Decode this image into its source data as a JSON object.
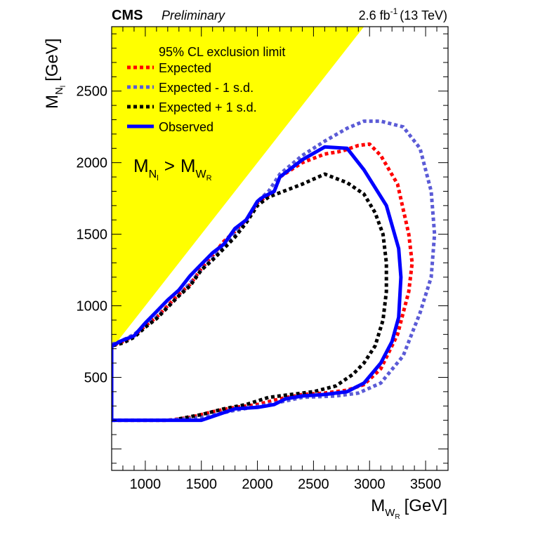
{
  "header": {
    "experiment": "CMS",
    "status": "Preliminary",
    "lumi_value": "2.6 fb",
    "lumi_exp": "-1",
    "energy": "(13 TeV)"
  },
  "chart_data": {
    "type": "line",
    "title": "95% CL exclusion limit",
    "xlabel": "M",
    "xlabel_sub": "W",
    "xlabel_subsub": "R",
    "xlabel_unit": "[GeV]",
    "ylabel": "M",
    "ylabel_sub": "N",
    "ylabel_subsub": "l",
    "ylabel_unit": "[GeV]",
    "xlim": [
      700,
      3700
    ],
    "ylim": [
      -150,
      2950
    ],
    "xticks": [
      1000,
      1500,
      2000,
      2500,
      3000,
      3500
    ],
    "yticks": [
      500,
      1000,
      1500,
      2000,
      2500
    ],
    "excluded_region": {
      "label_main": "M",
      "label_sub": "N",
      "label_subsub": "l",
      "label_op": ">",
      "label_rhs": "M",
      "label_rhs_sub": "W",
      "label_rhs_subsub": "R",
      "color": "#ffff00",
      "description": "kinematically forbidden region where MN > MW"
    },
    "legend_position": "top-left",
    "series": [
      {
        "name": "Expected",
        "color": "#ff0000",
        "style": "dotted",
        "points": [
          [
            700,
            200
          ],
          [
            1000,
            200
          ],
          [
            1200,
            200
          ],
          [
            1400,
            220
          ],
          [
            1600,
            260
          ],
          [
            1800,
            290
          ],
          [
            2000,
            310
          ],
          [
            2200,
            350
          ],
          [
            2400,
            380
          ],
          [
            2600,
            390
          ],
          [
            2800,
            410
          ],
          [
            2950,
            450
          ],
          [
            3100,
            560
          ],
          [
            3250,
            800
          ],
          [
            3350,
            1100
          ],
          [
            3380,
            1300
          ],
          [
            3350,
            1500
          ],
          [
            3250,
            1850
          ],
          [
            3100,
            2050
          ],
          [
            3000,
            2130
          ],
          [
            2900,
            2120
          ],
          [
            2750,
            2080
          ],
          [
            2600,
            2060
          ],
          [
            2400,
            2000
          ],
          [
            2200,
            1900
          ],
          [
            2150,
            1800
          ],
          [
            2000,
            1720
          ],
          [
            1900,
            1600
          ],
          [
            1800,
            1520
          ],
          [
            1700,
            1450
          ],
          [
            1600,
            1350
          ],
          [
            1500,
            1260
          ],
          [
            1400,
            1150
          ],
          [
            1300,
            1080
          ],
          [
            1200,
            1000
          ],
          [
            1100,
            920
          ],
          [
            1000,
            860
          ],
          [
            900,
            790
          ],
          [
            800,
            750
          ],
          [
            700,
            720
          ],
          [
            700,
            200
          ]
        ]
      },
      {
        "name": "Expected - 1 s.d.",
        "color": "#5b5bd6",
        "style": "dotted",
        "points": [
          [
            700,
            200
          ],
          [
            1200,
            200
          ],
          [
            1500,
            220
          ],
          [
            1800,
            270
          ],
          [
            2100,
            310
          ],
          [
            2400,
            360
          ],
          [
            2700,
            370
          ],
          [
            2900,
            390
          ],
          [
            3100,
            460
          ],
          [
            3300,
            650
          ],
          [
            3450,
            950
          ],
          [
            3550,
            1200
          ],
          [
            3580,
            1500
          ],
          [
            3550,
            1800
          ],
          [
            3450,
            2100
          ],
          [
            3300,
            2250
          ],
          [
            3100,
            2290
          ],
          [
            2950,
            2290
          ],
          [
            2800,
            2240
          ],
          [
            2600,
            2150
          ],
          [
            2400,
            2050
          ],
          [
            2200,
            1920
          ],
          [
            2100,
            1800
          ],
          [
            2000,
            1730
          ],
          [
            1900,
            1600
          ],
          [
            1800,
            1500
          ],
          [
            1700,
            1420
          ],
          [
            1600,
            1330
          ],
          [
            1500,
            1250
          ],
          [
            1400,
            1160
          ],
          [
            1300,
            1070
          ],
          [
            1200,
            990
          ],
          [
            1100,
            920
          ],
          [
            1000,
            860
          ],
          [
            900,
            800
          ],
          [
            800,
            760
          ],
          [
            700,
            730
          ]
        ]
      },
      {
        "name": "Expected + 1 s.d.",
        "color": "#000000",
        "style": "dotted",
        "points": [
          [
            1300,
            210
          ],
          [
            1500,
            240
          ],
          [
            1700,
            280
          ],
          [
            1900,
            310
          ],
          [
            2100,
            360
          ],
          [
            2300,
            380
          ],
          [
            2500,
            400
          ],
          [
            2700,
            440
          ],
          [
            2850,
            520
          ],
          [
            2950,
            600
          ],
          [
            3050,
            720
          ],
          [
            3120,
            900
          ],
          [
            3150,
            1100
          ],
          [
            3150,
            1300
          ],
          [
            3120,
            1500
          ],
          [
            3050,
            1650
          ],
          [
            2950,
            1780
          ],
          [
            2800,
            1860
          ],
          [
            2600,
            1920
          ],
          [
            2400,
            1850
          ],
          [
            2200,
            1790
          ],
          [
            2100,
            1760
          ],
          [
            2000,
            1700
          ],
          [
            1900,
            1580
          ],
          [
            1800,
            1480
          ],
          [
            1700,
            1400
          ],
          [
            1600,
            1320
          ],
          [
            1500,
            1250
          ],
          [
            1400,
            1140
          ],
          [
            1300,
            1070
          ],
          [
            1200,
            990
          ],
          [
            1100,
            910
          ],
          [
            1000,
            850
          ],
          [
            900,
            780
          ],
          [
            800,
            740
          ],
          [
            700,
            720
          ]
        ]
      },
      {
        "name": "Observed",
        "color": "#0000ff",
        "style": "solid",
        "points": [
          [
            700,
            200
          ],
          [
            1000,
            200
          ],
          [
            1200,
            200
          ],
          [
            1500,
            200
          ],
          [
            1650,
            240
          ],
          [
            1800,
            280
          ],
          [
            2000,
            290
          ],
          [
            2150,
            310
          ],
          [
            2250,
            350
          ],
          [
            2400,
            370
          ],
          [
            2600,
            380
          ],
          [
            2800,
            400
          ],
          [
            2950,
            460
          ],
          [
            3100,
            600
          ],
          [
            3200,
            750
          ],
          [
            3260,
            920
          ],
          [
            3280,
            1200
          ],
          [
            3260,
            1400
          ],
          [
            3150,
            1700
          ],
          [
            2950,
            1950
          ],
          [
            2800,
            2100
          ],
          [
            2600,
            2110
          ],
          [
            2400,
            2020
          ],
          [
            2200,
            1900
          ],
          [
            2150,
            1800
          ],
          [
            2050,
            1760
          ],
          [
            2000,
            1730
          ],
          [
            1900,
            1600
          ],
          [
            1800,
            1540
          ],
          [
            1700,
            1430
          ],
          [
            1600,
            1370
          ],
          [
            1500,
            1290
          ],
          [
            1400,
            1210
          ],
          [
            1300,
            1110
          ],
          [
            1200,
            1040
          ],
          [
            1100,
            960
          ],
          [
            1000,
            880
          ],
          [
            900,
            790
          ],
          [
            800,
            760
          ],
          [
            700,
            720
          ],
          [
            700,
            200
          ]
        ]
      }
    ]
  }
}
